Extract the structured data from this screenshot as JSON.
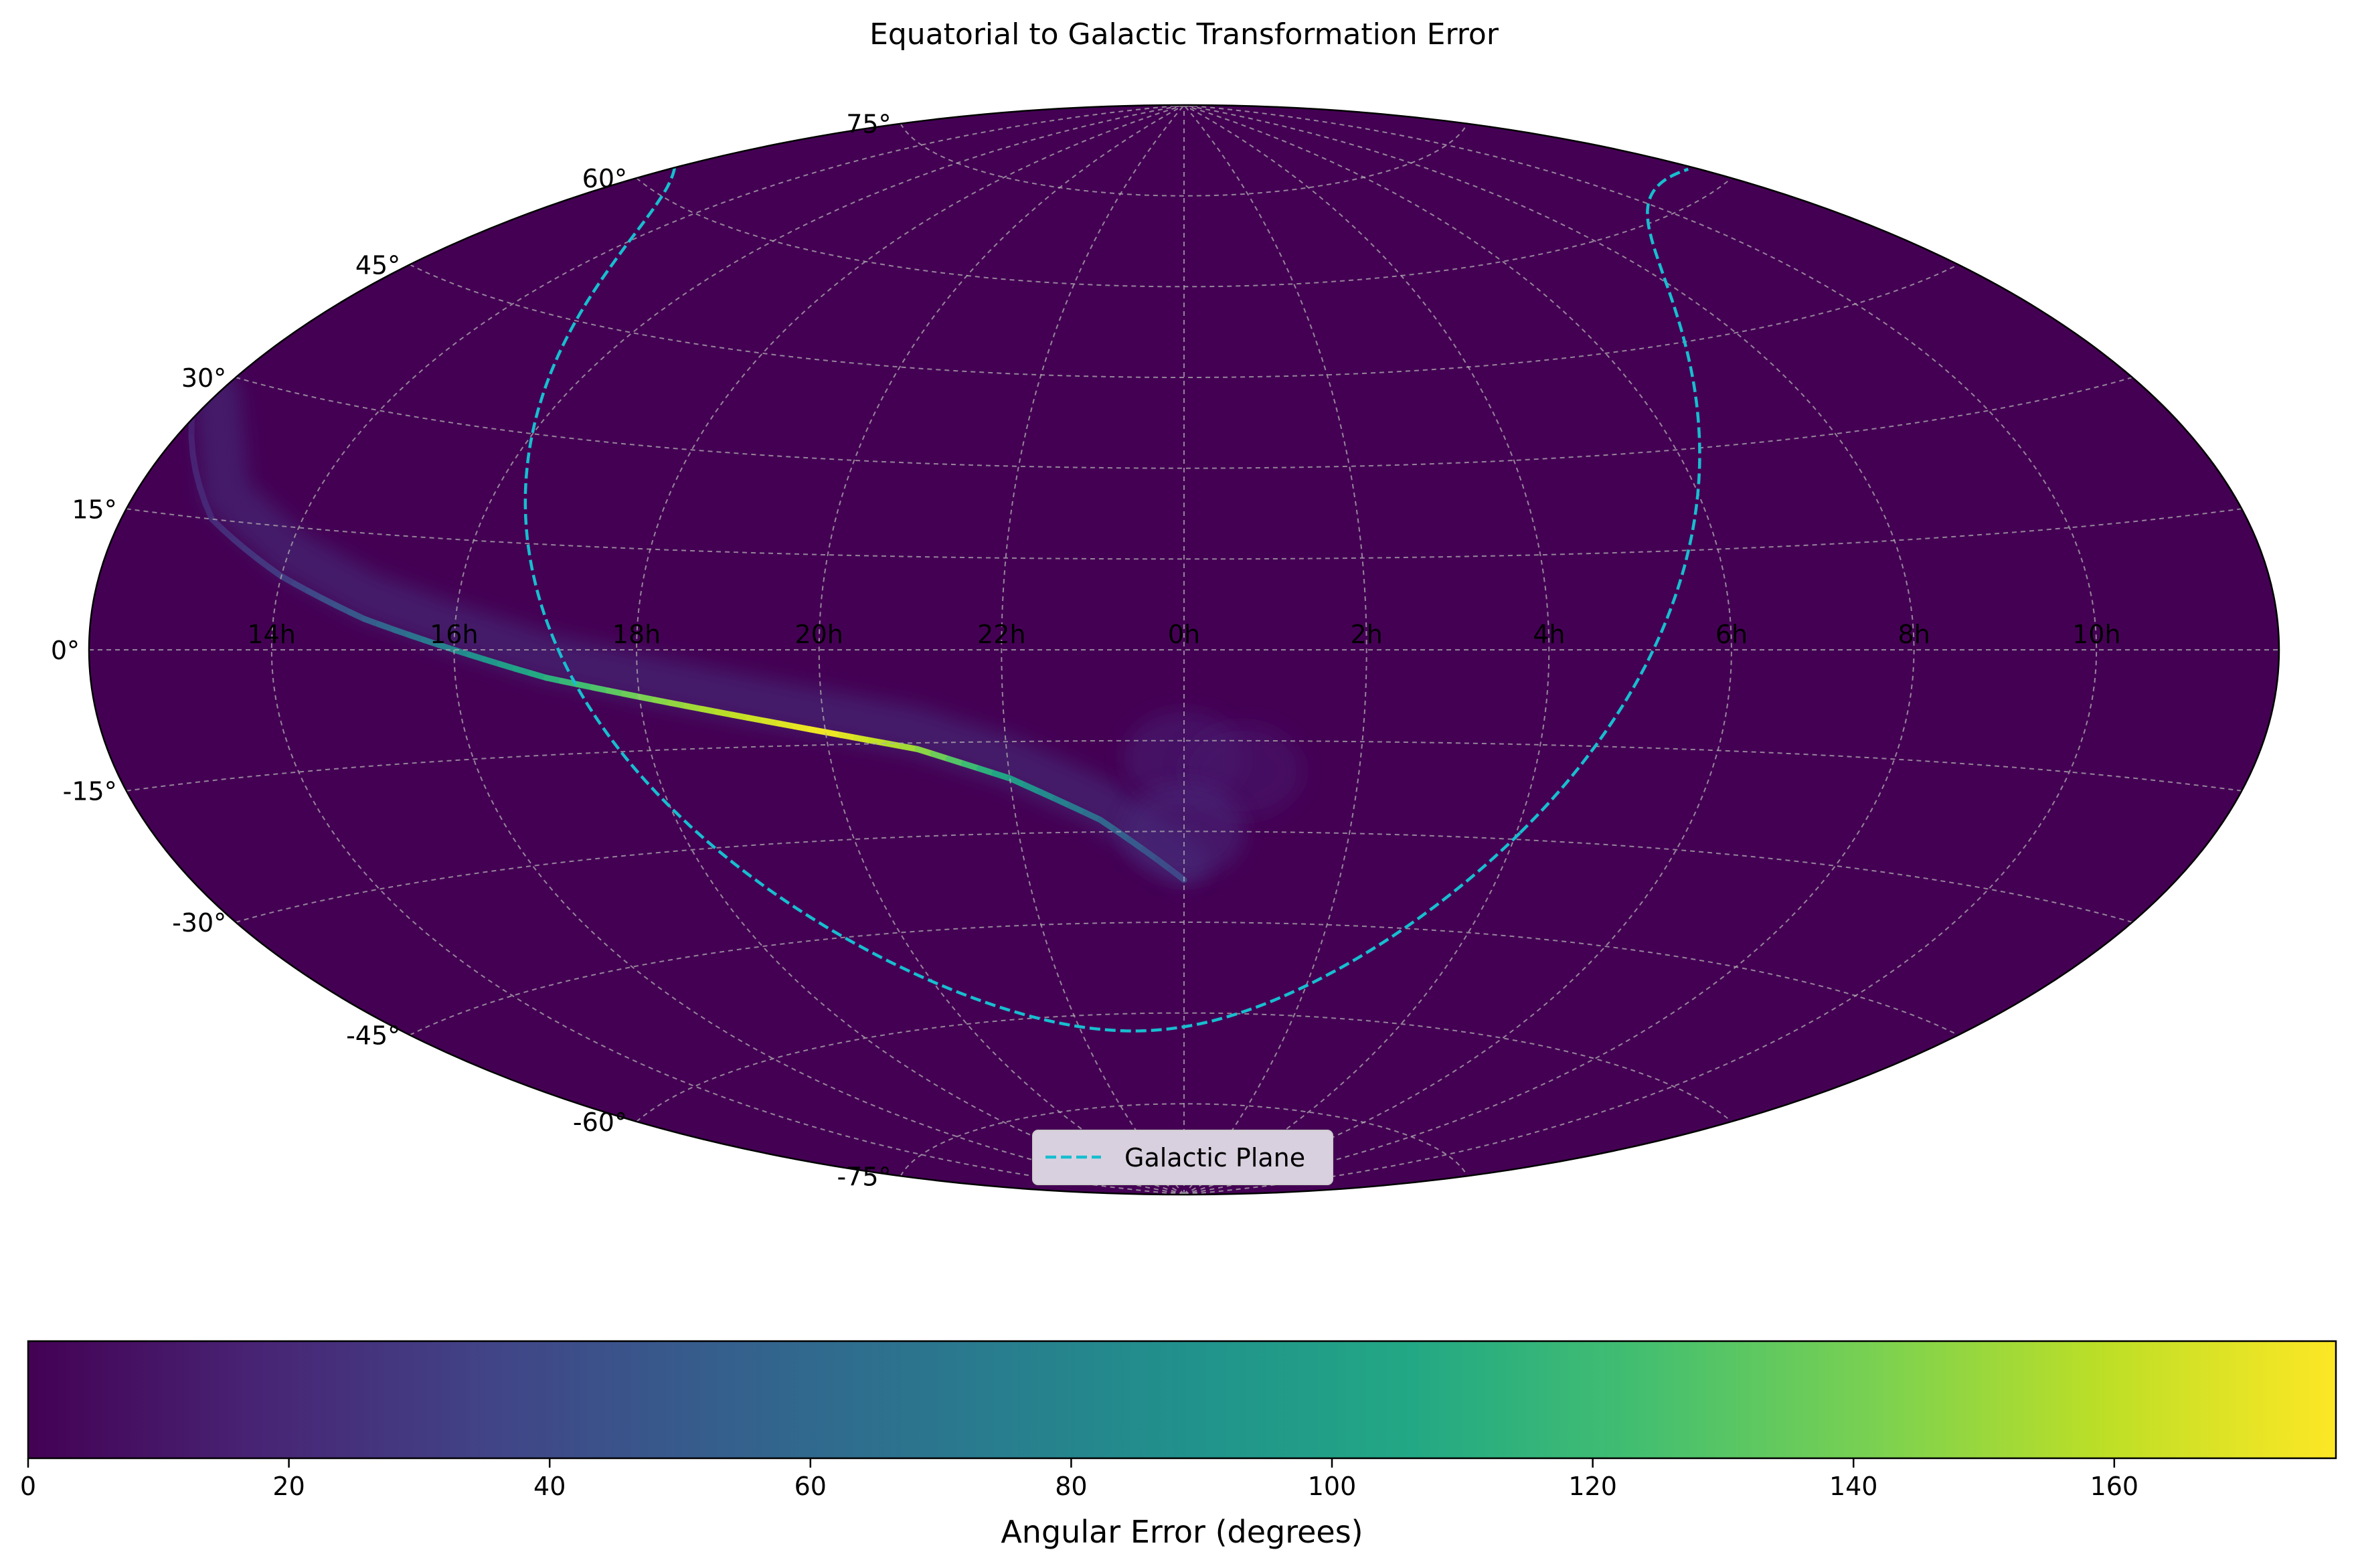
{
  "chart_data": {
    "type": "heatmap",
    "projection": "aitoff",
    "title": "Equatorial to Galactic Transformation Error",
    "ra_tick_labels": [
      "14h",
      "16h",
      "18h",
      "20h",
      "22h",
      "0h",
      "2h",
      "4h",
      "6h",
      "8h",
      "10h"
    ],
    "ra_tick_values_deg": [
      -150,
      -120,
      -90,
      -60,
      -30,
      0,
      30,
      60,
      90,
      120,
      150
    ],
    "dec_tick_labels": [
      "-75°",
      "-60°",
      "-45°",
      "-30°",
      "-15°",
      "0°",
      "15°",
      "30°",
      "45°",
      "60°",
      "75°"
    ],
    "dec_tick_values_deg": [
      -75,
      -60,
      -45,
      -30,
      -15,
      0,
      15,
      30,
      45,
      60,
      75
    ],
    "grid": true,
    "background_value": 0,
    "error_band": {
      "description_points_lon_lat_value": [
        [
          -180,
          25,
          15
        ],
        [
          -165,
          15,
          20
        ],
        [
          -150,
          9,
          30
        ],
        [
          -135,
          4,
          50
        ],
        [
          -120,
          0,
          80
        ],
        [
          -105,
          -4,
          110
        ],
        [
          -90,
          -7,
          140
        ],
        [
          -75,
          -10,
          160
        ],
        [
          -60,
          -13,
          175
        ],
        [
          -45,
          -16,
          150
        ],
        [
          -30,
          -21,
          100
        ],
        [
          -15,
          -28,
          60
        ],
        [
          0,
          -38,
          35
        ]
      ],
      "secondary_glow_lon_lat_value": [
        [
          0,
          -18,
          15
        ],
        [
          10,
          -20,
          12
        ],
        [
          0,
          -30,
          20
        ]
      ]
    },
    "galactic_plane": {
      "name": "Galactic Plane",
      "color": "#17becf",
      "style": "dashed"
    },
    "colorbar": {
      "label": "Angular Error (degrees)",
      "min": 0,
      "max": 177,
      "ticks": [
        0,
        20,
        40,
        60,
        80,
        100,
        120,
        140,
        160
      ],
      "colormap": "viridis"
    },
    "legend": {
      "placement": "lower center",
      "entries": [
        "Galactic Plane"
      ]
    }
  }
}
